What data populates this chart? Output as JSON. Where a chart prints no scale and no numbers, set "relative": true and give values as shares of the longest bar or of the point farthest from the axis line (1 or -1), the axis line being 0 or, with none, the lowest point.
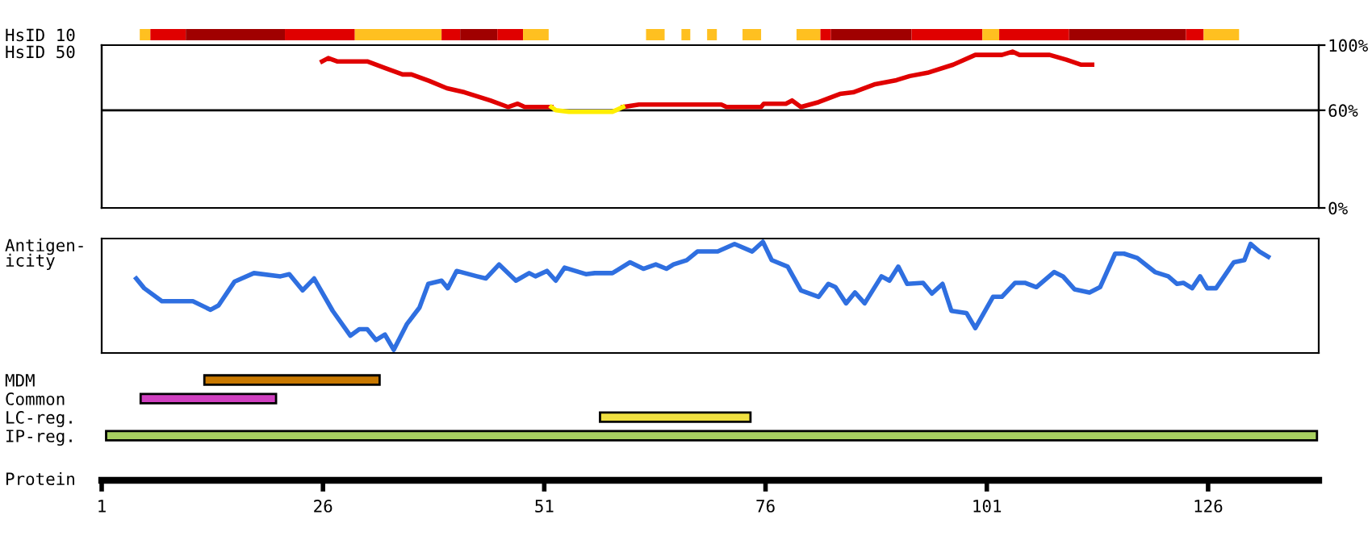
{
  "chart_data": [
    {
      "type": "bar",
      "orientation": "horizontal",
      "categories": [
        "HsID 10"
      ],
      "xlim": [
        1,
        138.5
      ],
      "tick_labels": "y",
      "series": [
        {
          "color": "#ffc020",
          "base": [
            5.3
          ],
          "values": [
            1.2
          ]
        },
        {
          "color": "#e00000",
          "base": [
            6.5
          ],
          "values": [
            4
          ]
        },
        {
          "color": "#a00000",
          "base": [
            10.5
          ],
          "values": [
            11.2
          ]
        },
        {
          "color": "#e00000",
          "base": [
            21.7
          ],
          "values": [
            7.9
          ]
        },
        {
          "color": "#ffc020",
          "base": [
            29.6
          ],
          "values": [
            9.8
          ]
        },
        {
          "color": "#e00000",
          "base": [
            39.4
          ],
          "values": [
            2.1
          ]
        },
        {
          "color": "#a00000",
          "base": [
            41.5
          ],
          "values": [
            4.2
          ]
        },
        {
          "color": "#e00000",
          "base": [
            45.7
          ],
          "values": [
            2.9
          ]
        },
        {
          "color": "#ffc020",
          "base": [
            48.6
          ],
          "values": [
            2.9
          ]
        },
        {
          "color": "#ffc020",
          "base": [
            62.5
          ],
          "values": [
            2.1
          ]
        },
        {
          "color": "#ffc020",
          "base": [
            66.5
          ],
          "values": [
            1
          ]
        },
        {
          "color": "#ffc020",
          "base": [
            69.4
          ],
          "values": [
            1.1
          ]
        },
        {
          "color": "#ffc020",
          "base": [
            73.4
          ],
          "values": [
            2.1
          ]
        },
        {
          "color": "#ffc020",
          "base": [
            79.5
          ],
          "values": [
            2.7
          ]
        },
        {
          "color": "#e00000",
          "base": [
            82.2
          ],
          "values": [
            1.2
          ]
        },
        {
          "color": "#a00000",
          "base": [
            83.4
          ],
          "values": [
            9.1
          ]
        },
        {
          "color": "#e00000",
          "base": [
            92.5
          ],
          "values": [
            8
          ]
        },
        {
          "color": "#ffc020",
          "base": [
            100.5
          ],
          "values": [
            1.9
          ]
        },
        {
          "color": "#e00000",
          "base": [
            102.4
          ],
          "values": [
            7.9
          ]
        },
        {
          "color": "#a00000",
          "base": [
            110.3
          ],
          "values": [
            13.2
          ]
        },
        {
          "color": "#e00000",
          "base": [
            123.5
          ],
          "values": [
            2
          ]
        },
        {
          "color": "#ffc020",
          "base": [
            125.5
          ],
          "values": [
            4
          ]
        }
      ]
    },
    {
      "type": "line",
      "ylabel": "HsID 50",
      "xlim": [
        1,
        138.5
      ],
      "y2lim": [
        0,
        100
      ],
      "tick_labels": "y",
      "y2ticks": [
        {
          "value": 0,
          "label": "0%"
        },
        {
          "value": 60,
          "label": "60%"
        },
        {
          "value": 100,
          "label": "100%"
        }
      ],
      "ref_lines": [
        {
          "axis": "y2",
          "value": 60,
          "color": "#000000"
        }
      ],
      "series": [
        {
          "color": "#e00000",
          "axis": "y2",
          "x": [
            25.9,
            26.6,
            27.6,
            31,
            33,
            35,
            36,
            38,
            40,
            42,
            44.9,
            46.9,
            48,
            48.8,
            51.8,
            52.3,
            59.9,
            61.7,
            71,
            71.6,
            75.5,
            75.8,
            78.3,
            79,
            80,
            82,
            84.4,
            85.9,
            88.4,
            90.8,
            92.3,
            94.3,
            97.2,
            99.7,
            102.7,
            103.9,
            104.7,
            108.1,
            110,
            111.6,
            112.9
          ],
          "values": [
            90,
            92,
            90,
            90,
            86,
            82,
            82,
            78,
            73.5,
            71,
            66,
            62,
            64,
            62,
            62,
            null,
            62,
            63.5,
            63.5,
            62,
            62,
            64,
            64,
            66,
            62,
            65,
            70,
            71,
            76,
            78.5,
            81,
            83,
            88,
            94,
            94,
            96,
            94,
            94,
            91,
            88,
            88
          ]
        },
        {
          "color": "#ffee00",
          "axis": "y2",
          "x": [
            51.8,
            52.3,
            53.8,
            58.7,
            59.9
          ],
          "values": [
            62,
            60,
            59,
            59,
            62
          ]
        }
      ]
    },
    {
      "type": "line",
      "ylabel": "Antigen-\nicity",
      "relative": true,
      "xlim": [
        1,
        138.5
      ],
      "tick_labels": false,
      "series": [
        {
          "color": "#2f6fe0",
          "x": [
            4.9,
            5.8,
            7.8,
            11.3,
            13.3,
            14.2,
            16,
            18.2,
            21.2,
            22.2,
            23.7,
            25,
            27.1,
            29.1,
            30.1,
            31,
            32,
            33,
            34,
            35.5,
            36.9,
            37.9,
            39.4,
            40.1,
            41.1,
            43.4,
            44.4,
            45.9,
            47.8,
            49.3,
            50,
            51.3,
            52.3,
            53.3,
            55.7,
            56.7,
            58.7,
            60.7,
            62.2,
            63.6,
            64.8,
            65.6,
            67.1,
            68.3,
            70.6,
            72.5,
            74.5,
            75.7,
            76.7,
            78.5,
            80,
            82,
            83.1,
            83.9,
            85.1,
            86.1,
            87.2,
            89.1,
            90,
            91,
            92,
            93.8,
            94.8,
            96,
            97,
            98.7,
            99.7,
            101.7,
            102.7,
            104.2,
            105.3,
            106.6,
            108.6,
            109.6,
            110.9,
            112.6,
            113.8,
            115.5,
            116.5,
            118,
            120,
            121.5,
            122.5,
            123.2,
            124.2,
            125.1,
            125.9,
            126.9,
            128.9,
            130.1,
            130.8,
            131.8,
            132.8
          ],
          "values": [
            0.66,
            0.57,
            0.45,
            0.45,
            0.37,
            0.41,
            0.63,
            0.71,
            0.68,
            0.7,
            0.55,
            0.66,
            0.36,
            0.13,
            0.19,
            0.19,
            0.09,
            0.14,
            0,
            0.24,
            0.39,
            0.61,
            0.64,
            0.57,
            0.73,
            0.68,
            0.66,
            0.79,
            0.64,
            0.71,
            0.68,
            0.73,
            0.64,
            0.76,
            0.7,
            0.71,
            0.71,
            0.81,
            0.75,
            0.79,
            0.75,
            0.79,
            0.83,
            0.91,
            0.91,
            0.98,
            0.91,
            1,
            0.83,
            0.77,
            0.55,
            0.49,
            0.61,
            0.58,
            0.43,
            0.53,
            0.43,
            0.68,
            0.64,
            0.77,
            0.61,
            0.62,
            0.52,
            0.61,
            0.36,
            0.34,
            0.2,
            0.49,
            0.49,
            0.62,
            0.62,
            0.58,
            0.72,
            0.68,
            0.56,
            0.53,
            0.58,
            0.89,
            0.89,
            0.85,
            0.72,
            0.68,
            0.61,
            0.62,
            0.57,
            0.68,
            0.57,
            0.57,
            0.81,
            0.83,
            0.98,
            0.91,
            0.86
          ]
        }
      ]
    },
    {
      "type": "bar",
      "orientation": "horizontal",
      "categories": [
        "MDM",
        "Common",
        "LC-reg.",
        "IP-reg."
      ],
      "xlabel": "Protein",
      "xlim": [
        1,
        138.5
      ],
      "xticks": [
        1,
        26,
        51,
        76,
        101,
        126
      ],
      "base": [
        12.6,
        5.4,
        57.3,
        1.5
      ],
      "values": [
        19.8,
        15.3,
        17,
        136.8
      ],
      "colors": [
        "#c87800",
        "#d040c0",
        "#f0e040",
        "#a8d060"
      ]
    }
  ]
}
